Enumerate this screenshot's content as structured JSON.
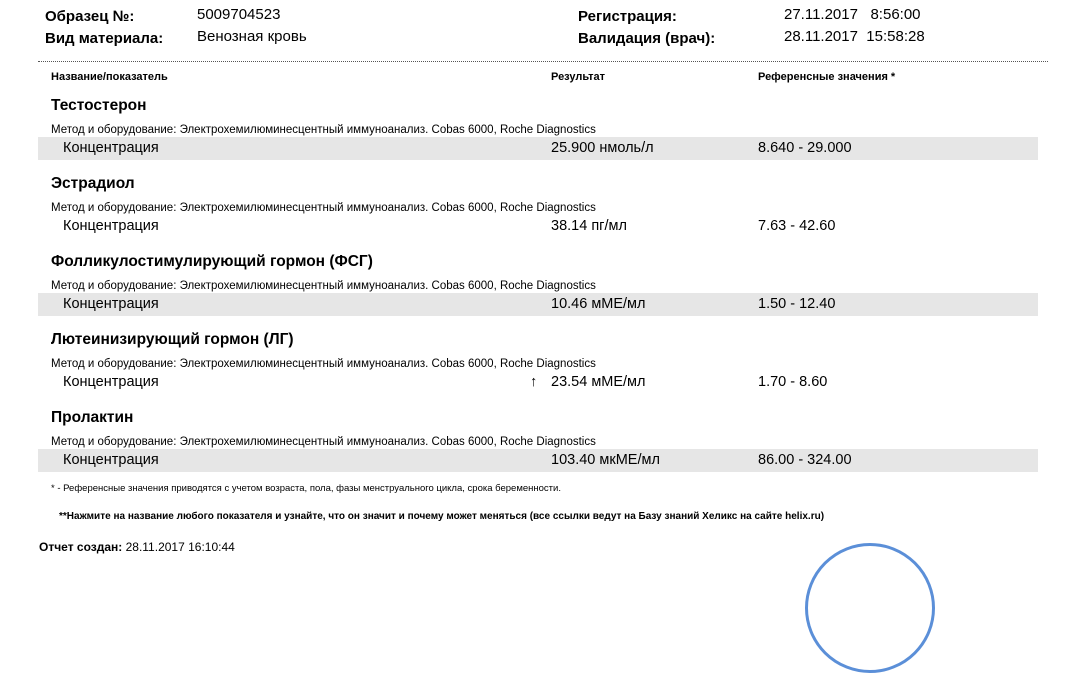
{
  "header": {
    "sample_label": "Образец №:",
    "sample_value": "5009704523",
    "material_label": "Вид материала:",
    "material_value": "Венозная кровь",
    "reg_label": "Регистрация:",
    "reg_value": "27.11.2017   8:56:00",
    "val_label": "Валидация (врач):",
    "val_value": "28.11.2017  15:58:28"
  },
  "columns": {
    "name": "Название/показатель",
    "result": "Результат",
    "ref": "Референсные значения *"
  },
  "tests": [
    {
      "title": "Тестостерон",
      "method": "Метод и оборудование:  Электрохемилюминесцентный иммуноанализ. Cobas 6000, Roche Diagnostics",
      "param": "Концентрация",
      "result": "25.900 нмоль/л",
      "ref": "8.640 - 29.000",
      "flag": ""
    },
    {
      "title": "Эстрадиол",
      "method": "Метод и оборудование:  Электрохемилюминесцентный иммуноанализ. Cobas 6000, Roche Diagnostics",
      "param": "Концентрация",
      "result": "38.14 пг/мл",
      "ref": "7.63 - 42.60",
      "flag": ""
    },
    {
      "title": "Фолликулостимулирующий гормон (ФСГ)",
      "method": "Метод и оборудование:  Электрохемилюминесцентный иммуноанализ. Cobas 6000, Roche Diagnostics",
      "param": "Концентрация",
      "result": "10.46 мМЕ/мл",
      "ref": "1.50 - 12.40",
      "flag": ""
    },
    {
      "title": "Лютеинизирующий гормон (ЛГ)",
      "method": "Метод и оборудование:  Электрохемилюминесцентный иммуноанализ. Cobas 6000, Roche Diagnostics",
      "param": "Концентрация",
      "result": "23.54 мМЕ/мл",
      "ref": "1.70 - 8.60",
      "flag": "↑"
    },
    {
      "title": "Пролактин",
      "method": "Метод и оборудование:  Электрохемилюминесцентный иммуноанализ. Cobas 6000, Roche Diagnostics",
      "param": "Концентрация",
      "result": "103.40 мкМЕ/мл",
      "ref": "86.00 - 324.00",
      "flag": ""
    }
  ],
  "footnotes": {
    "ref_note": "* - Референсные значения приводятся с учетом возраста, пола, фазы менструального цикла, срока беременности.",
    "link_note": "**Нажмите на название любого показателя и узнайте, что он значит и почему может меняться (все ссылки ведут на Базу знаний Хеликс на сайте helix.ru)",
    "report_label": "Отчет создан:",
    "report_value": "28.11.2017 16:10:44"
  },
  "stamp_color": "#5b8fd8"
}
